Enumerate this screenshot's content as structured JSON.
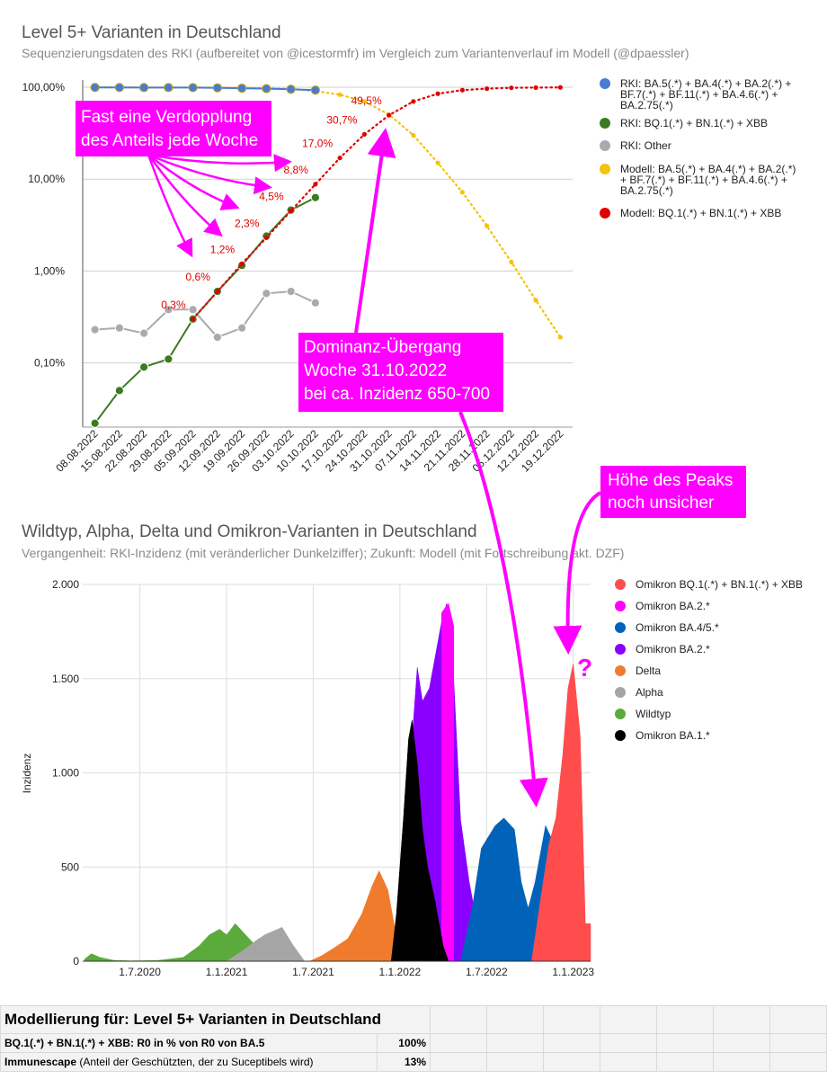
{
  "chart_data": [
    {
      "type": "line",
      "title": "Level 5+ Varianten in Deutschland",
      "subtitle": "Sequenzierungsdaten des RKI (aufbereitet von @icestormfr) im Vergleich zum Variantenverlauf im Modell (@dpaessler)",
      "y_scale": "log",
      "ylim": [
        0.0002,
        1.0
      ],
      "yticks": [
        {
          "value": 1.0,
          "label": "100,00%"
        },
        {
          "value": 0.1,
          "label": "10,00%"
        },
        {
          "value": 0.01,
          "label": "1,00%"
        },
        {
          "value": 0.001,
          "label": "0,10%"
        }
      ],
      "categories": [
        "08.08.2022",
        "15.08.2022",
        "22.08.2022",
        "29.08.2022",
        "05.09.2022",
        "12.09.2022",
        "19.09.2022",
        "26.09.2022",
        "03.10.2022",
        "10.10.2022",
        "17.10.2022",
        "24.10.2022",
        "31.10.2022",
        "07.11.2022",
        "14.11.2022",
        "21.11.2022",
        "28.11.2022",
        "05.12.2022",
        "12.12.2022",
        "19.12.2022"
      ],
      "series": [
        {
          "name": "RKI: BA.5(.*) + BA.4(.*) + BA.2(.*) + BF.7(.*) + BF.11(.*) + BA.4.6(.*) + BA.2.75(.*)",
          "color": "#4a7bd0",
          "style": "solid",
          "x": [
            0,
            1,
            2,
            3,
            4,
            5,
            6,
            7,
            8,
            9
          ],
          "values": [
            0.995,
            0.993,
            0.992,
            0.991,
            0.99,
            0.985,
            0.975,
            0.965,
            0.95,
            0.93
          ]
        },
        {
          "name": "RKI: BQ.1(.*) + BN.1(.*) + XBB",
          "color": "#3c7a22",
          "style": "solid",
          "x": [
            0,
            1,
            2,
            3,
            4,
            5,
            6,
            7,
            8,
            9
          ],
          "values": [
            0.00022,
            0.0005,
            0.0009,
            0.0011,
            0.003,
            0.006,
            0.0115,
            0.024,
            0.046,
            0.063
          ]
        },
        {
          "name": "RKI: Other",
          "color": "#aaaaaa",
          "style": "solid",
          "x": [
            0,
            1,
            2,
            3,
            4,
            5,
            6,
            7,
            8,
            9
          ],
          "values": [
            0.0023,
            0.0024,
            0.0021,
            0.0038,
            0.0038,
            0.0019,
            0.0024,
            0.0057,
            0.006,
            0.0045
          ]
        },
        {
          "name": "Modell: BA.5(.*) + BA.4(.*) + BA.2(.*) + BF.7(.*) + BF.11(.*) + BA.4.6(.*) + BA.2.75(.*)",
          "color": "#f5c20d",
          "style": "dotted",
          "x": [
            0,
            1,
            2,
            3,
            4,
            5,
            6,
            7,
            8,
            9,
            10,
            11,
            12,
            13,
            14,
            15,
            16,
            17,
            18,
            19
          ],
          "values": [
            0.997,
            0.997,
            0.994,
            0.99,
            0.995,
            0.99,
            0.985,
            0.975,
            0.955,
            0.91,
            0.83,
            0.7,
            0.505,
            0.3,
            0.15,
            0.072,
            0.031,
            0.0125,
            0.0048,
            0.0019
          ]
        },
        {
          "name": "Modell: BQ.1(.*) + BN.1(.*) + XBB",
          "color": "#e00000",
          "style": "dotted",
          "x": [
            4,
            5,
            6,
            7,
            8,
            9,
            10,
            11,
            12,
            13,
            14,
            15,
            16,
            17,
            18,
            19
          ],
          "values": [
            0.003,
            0.006,
            0.012,
            0.023,
            0.045,
            0.088,
            0.17,
            0.307,
            0.495,
            0.7,
            0.85,
            0.93,
            0.965,
            0.985,
            0.99,
            0.995
          ]
        }
      ],
      "data_labels": [
        {
          "text": "0,3%",
          "x": 4,
          "value": 0.003
        },
        {
          "text": "0,6%",
          "x": 5,
          "value": 0.006
        },
        {
          "text": "1,2%",
          "x": 6,
          "value": 0.012
        },
        {
          "text": "2,3%",
          "x": 7,
          "value": 0.023
        },
        {
          "text": "4,5%",
          "x": 8,
          "value": 0.045
        },
        {
          "text": "8,8%",
          "x": 9,
          "value": 0.088
        },
        {
          "text": "17,0%",
          "x": 10,
          "value": 0.17
        },
        {
          "text": "30,7%",
          "x": 11,
          "value": 0.307
        },
        {
          "text": "49,5%",
          "x": 12,
          "value": 0.495
        }
      ],
      "annotations": [
        {
          "text": [
            "Fast eine Verdopplung",
            "des Anteils jede Woche"
          ],
          "color": "#ff00ff"
        },
        {
          "text": [
            "Dominanz-Übergang",
            "Woche 31.10.2022",
            "bei ca. Inzidenz 650-700"
          ],
          "color": "#ff00ff"
        }
      ],
      "legend": "right",
      "grid": true
    },
    {
      "type": "area",
      "title": "Wildtyp, Alpha, Delta und Omikron-Varianten in Deutschland",
      "subtitle": "Vergangenheit: RKI-Inzidenz (mit veränderlicher Dunkelziffer); Zukunft: Modell (mit Fortschreibung akt. DZF)",
      "ylabel": "Inzidenz",
      "ylim": [
        0,
        2000
      ],
      "yticks": [
        {
          "value": 0,
          "label": "0"
        },
        {
          "value": 500,
          "label": "500"
        },
        {
          "value": 1000,
          "label": "1.000"
        },
        {
          "value": 1500,
          "label": "1.500"
        },
        {
          "value": 2000,
          "label": "2.000"
        }
      ],
      "xticks": [
        {
          "value": 2020.5,
          "label": "1.7.2020"
        },
        {
          "value": 2021.0,
          "label": "1.1.2021"
        },
        {
          "value": 2021.5,
          "label": "1.7.2021"
        },
        {
          "value": 2022.0,
          "label": "1.1.2022"
        },
        {
          "value": 2022.5,
          "label": "1.7.2022"
        },
        {
          "value": 2023.0,
          "label": "1.1.2023"
        }
      ],
      "xlim": [
        2020.17,
        2023.1
      ],
      "series": [
        {
          "name": "Omikron BQ.1(.*) + BN.1(.*) + XBB",
          "color": "#ff4d4d",
          "x": [
            2022.76,
            2022.82,
            2022.86,
            2022.9,
            2022.94,
            2022.97,
            2023.0,
            2023.04,
            2023.07,
            2023.08,
            2023.1
          ],
          "values": [
            0,
            380,
            620,
            760,
            1100,
            1450,
            1580,
            1200,
            200,
            200,
            200
          ]
        },
        {
          "name": "Omikron BA.2.*",
          "color": "#ff00ff",
          "x": [
            2022.24,
            2022.28,
            2022.31
          ],
          "values": [
            1850,
            1900,
            1780
          ]
        },
        {
          "name": "Omikron BA.4/5.*",
          "color": "#0062b8",
          "x": [
            2022.35,
            2022.42,
            2022.47,
            2022.55,
            2022.6,
            2022.66,
            2022.7,
            2022.74,
            2022.78,
            2022.84,
            2022.88,
            2022.92,
            2022.96
          ],
          "values": [
            0,
            300,
            600,
            720,
            760,
            700,
            420,
            280,
            420,
            720,
            640,
            300,
            0
          ]
        },
        {
          "name": "Omikron BA.2.*",
          "color": "#8a00ff",
          "x": [
            2022.0,
            2022.06,
            2022.1,
            2022.13,
            2022.17,
            2022.2,
            2022.24,
            2022.27,
            2022.31,
            2022.35,
            2022.4,
            2022.46,
            2022.5
          ],
          "values": [
            0,
            1050,
            1560,
            1380,
            1450,
            1600,
            1800,
            1900,
            1500,
            750,
            420,
            120,
            0
          ]
        },
        {
          "name": "Delta",
          "color": "#f07b2d",
          "x": [
            2021.48,
            2021.55,
            2021.62,
            2021.7,
            2021.78,
            2021.84,
            2021.88,
            2021.93,
            2021.97,
            2022.01,
            2022.05
          ],
          "values": [
            0,
            30,
            70,
            120,
            250,
            400,
            480,
            380,
            180,
            60,
            0
          ]
        },
        {
          "name": "Alpha",
          "color": "#a5a5a5",
          "x": [
            2021.0,
            2021.1,
            2021.17,
            2021.22,
            2021.27,
            2021.32,
            2021.38,
            2021.45
          ],
          "values": [
            0,
            60,
            110,
            140,
            160,
            180,
            90,
            0
          ]
        },
        {
          "name": "Wildtyp",
          "color": "#5aaa3c",
          "x": [
            2020.18,
            2020.22,
            2020.27,
            2020.35,
            2020.45,
            2020.6,
            2020.75,
            2020.84,
            2020.9,
            2020.96,
            2021.0,
            2021.05,
            2021.1,
            2021.17,
            2021.25,
            2021.32
          ],
          "values": [
            10,
            40,
            20,
            5,
            2,
            4,
            20,
            80,
            140,
            170,
            140,
            200,
            150,
            80,
            50,
            0
          ]
        },
        {
          "name": "Omikron BA.1.*",
          "color": "#000000",
          "x": [
            2021.95,
            2021.98,
            2022.02,
            2022.05,
            2022.07,
            2022.1,
            2022.13,
            2022.16,
            2022.2,
            2022.25,
            2022.28
          ],
          "values": [
            0,
            250,
            750,
            1180,
            1280,
            1050,
            700,
            500,
            330,
            80,
            0
          ]
        }
      ],
      "annotations": [
        {
          "text": [
            "Höhe des Peaks",
            "noch unsicher"
          ],
          "color": "#ff00ff"
        },
        {
          "text": [
            "?"
          ],
          "color": "#ff00ff"
        }
      ],
      "legend": "right"
    }
  ],
  "table": {
    "title": "Modellierung für: Level 5+ Varianten in Deutschland",
    "rows": [
      {
        "label": "BQ.1(.*) + BN.1(.*) + XBB: R0 in % von R0 von BA.5",
        "value": "100%"
      },
      {
        "label_bold": "Immunescape",
        "label_rest": " (Anteil der Geschützten, der zu Suceptibels wird)",
        "value": "13%"
      }
    ]
  }
}
